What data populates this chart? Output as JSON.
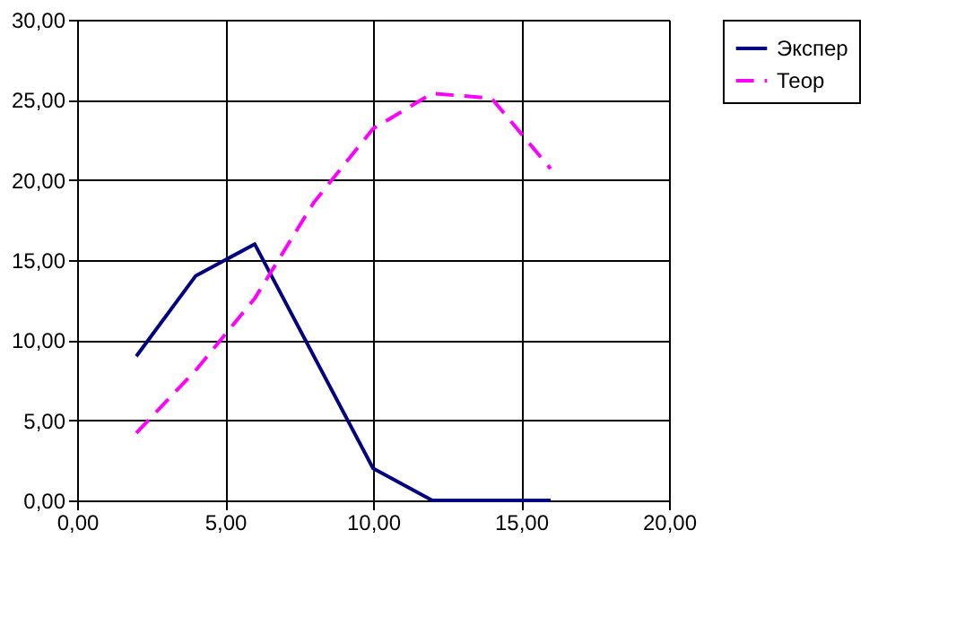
{
  "chart_data": {
    "type": "line",
    "xlim": [
      0,
      20
    ],
    "ylim": [
      0,
      30
    ],
    "xticks": [
      {
        "value": 0,
        "label": "0,00"
      },
      {
        "value": 5,
        "label": "5,00"
      },
      {
        "value": 10,
        "label": "10,00"
      },
      {
        "value": 15,
        "label": "15,00"
      },
      {
        "value": 20,
        "label": "20,00"
      }
    ],
    "yticks": [
      {
        "value": 0,
        "label": "0,00"
      },
      {
        "value": 5,
        "label": "5,00"
      },
      {
        "value": 10,
        "label": "10,00"
      },
      {
        "value": 15,
        "label": "15,00"
      },
      {
        "value": 20,
        "label": "20,00"
      },
      {
        "value": 25,
        "label": "25,00"
      },
      {
        "value": 30,
        "label": "30,00"
      }
    ],
    "grid": true,
    "legend": "right",
    "marker": "none",
    "series": [
      {
        "name": "Экспер",
        "color": "#000080",
        "line_style": "solid",
        "x": [
          2,
          4,
          6,
          10,
          12,
          16
        ],
        "values": [
          9,
          14,
          16,
          2,
          0,
          0
        ]
      },
      {
        "name": "Теор",
        "color": "#ff00ff",
        "line_style": "dashed",
        "x": [
          2,
          4,
          6,
          8,
          10,
          12,
          14,
          16
        ],
        "values": [
          4.2,
          8.1,
          12.6,
          18.6,
          23.2,
          25.4,
          25.1,
          20.7
        ]
      }
    ]
  }
}
